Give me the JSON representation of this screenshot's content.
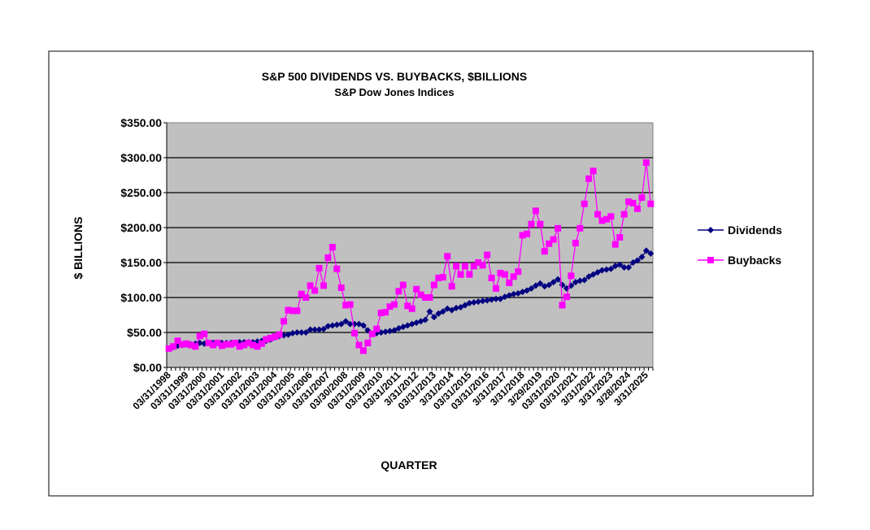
{
  "chart_data": {
    "type": "line",
    "title": "S&P 500 DIVIDENDS VS. BUYBACKS,  $BILLIONS",
    "subtitle": "S&P Dow Jones Indices",
    "xlabel": "QUARTER",
    "ylabel": "$ BILLIONS",
    "ylim": [
      0,
      350
    ],
    "yticks": [
      0,
      50,
      100,
      150,
      200,
      250,
      300,
      350
    ],
    "ytick_labels": [
      "$0.00",
      "$50.00",
      "$100.00",
      "$150.00",
      "$200.00",
      "$250.00",
      "$300.00",
      "$350.00"
    ],
    "x_tick_labels": [
      "03/31/1998",
      "03/31/1999",
      "03/31/2000",
      "03/31/2001",
      "03/31/2002",
      "03/31/2003",
      "03/31/2004",
      "03/31/2005",
      "03/31/2006",
      "03/31/2007",
      "03/30/2008",
      "03/31/2009",
      "03/31/2010",
      "03/31/2011",
      "3/31/2012",
      "03/31/2013",
      "3/31/2014",
      "03/31/2015",
      "03/31/2016",
      "3/31/2017",
      "3/31/2018",
      "3/29/2019",
      "03/31/2020",
      "03/31/2021",
      "3/31/2022",
      "3/31/2023",
      "3/28/2024",
      "3/31/2025"
    ],
    "grid": true,
    "plot_background": "#C0C0C0",
    "legend_placement": "right",
    "series": [
      {
        "name": "Dividends",
        "color": "#000080",
        "marker": "diamond",
        "values": [
          27,
          29,
          31,
          32,
          33,
          33,
          34,
          35,
          34,
          35,
          35,
          35,
          35,
          35,
          35,
          35,
          36,
          36,
          36,
          36,
          37,
          38,
          38,
          40,
          43,
          45,
          46,
          47,
          49,
          50,
          50,
          50,
          54,
          54,
          54,
          55,
          59,
          60,
          61,
          62,
          66,
          62,
          62,
          62,
          60,
          53,
          48,
          49,
          50,
          51,
          52,
          53,
          56,
          58,
          60,
          62,
          64,
          66,
          68,
          80,
          72,
          77,
          80,
          84,
          82,
          85,
          86,
          89,
          92,
          93,
          94,
          95,
          96,
          97,
          98,
          98,
          101,
          103,
          105,
          106,
          108,
          110,
          113,
          117,
          120,
          116,
          118,
          122,
          126,
          118,
          113,
          117,
          122,
          124,
          125,
          130,
          133,
          136,
          139,
          140,
          141,
          145,
          147,
          143,
          143,
          150,
          153,
          158,
          167,
          163
        ]
      },
      {
        "name": "Buybacks",
        "color": "#FF00FF",
        "marker": "square",
        "values": [
          27,
          30,
          38,
          33,
          34,
          32,
          30,
          45,
          48,
          35,
          32,
          35,
          31,
          33,
          33,
          35,
          30,
          32,
          35,
          32,
          30,
          34,
          40,
          42,
          44,
          47,
          66,
          82,
          81,
          81,
          105,
          100,
          117,
          110,
          142,
          117,
          157,
          172,
          141,
          114,
          89,
          90,
          49,
          32,
          24,
          35,
          48,
          55,
          78,
          79,
          87,
          90,
          109,
          118,
          88,
          84,
          112,
          104,
          100,
          100,
          118,
          128,
          129,
          159,
          116,
          145,
          133,
          145,
          133,
          145,
          150,
          146,
          161,
          128,
          113,
          135,
          133,
          121,
          130,
          137,
          189,
          191,
          205,
          224,
          205,
          166,
          177,
          183,
          199,
          89,
          101,
          131,
          178,
          199,
          234,
          270,
          281,
          219,
          210,
          212,
          216,
          176,
          186,
          219,
          237,
          235,
          227,
          243,
          293,
          234
        ]
      }
    ]
  }
}
